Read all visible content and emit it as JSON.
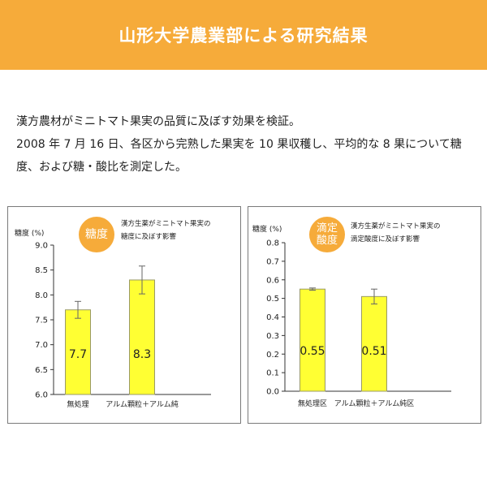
{
  "header": {
    "title": "山形大学農業部による研究結果",
    "background_color": "#f6ab3a"
  },
  "intro": {
    "line1": "漢方農材がミニトマト果実の品質に及ぼす効果を検証。",
    "line2": "2008 年 7 月 16 日、各区から完熟した果実を 10 果収穫し、平均的な 8 果について糖",
    "line3": "度、および糖・酸比を測定した。"
  },
  "colors": {
    "bar_fill": "#ffff33",
    "bar_stroke": "#9a9a66",
    "badge": "#f6ab3a"
  },
  "chart_data": [
    {
      "type": "bar",
      "badge": "糖度",
      "note_line1": "漢方生薬がミニトマト果実の",
      "note_line2": "糖度に及ぼす影響",
      "ylabel": "糖度 (%)",
      "ylim": [
        6.0,
        9.0
      ],
      "yticks": [
        "6.0",
        "6.5",
        "7.0",
        "7.5",
        "8.0",
        "8.5",
        "9.0"
      ],
      "categories": [
        "無処理",
        "アルム顆粒＋アルム純"
      ],
      "values": [
        7.7,
        8.3
      ],
      "value_labels": [
        "7.7",
        "8.3"
      ],
      "errors": [
        0.17,
        0.28
      ]
    },
    {
      "type": "bar",
      "badge_line1": "滴定",
      "badge_line2": "酸度",
      "note_line1": "漢方生薬がミニトマト果実の",
      "note_line2": "滴定酸度に及ぼす影響",
      "ylabel": "糖度 (%)",
      "ylim": [
        0.0,
        0.8
      ],
      "yticks": [
        "0.0",
        "0.1",
        "0.2",
        "0.3",
        "0.4",
        "0.5",
        "0.6",
        "0.7",
        "0.8"
      ],
      "categories": [
        "無処理区",
        "アルム顆粒＋アルム純区"
      ],
      "values": [
        0.55,
        0.51
      ],
      "value_labels": [
        "0.55",
        "0.51"
      ],
      "errors": [
        0.006,
        0.04
      ]
    }
  ]
}
